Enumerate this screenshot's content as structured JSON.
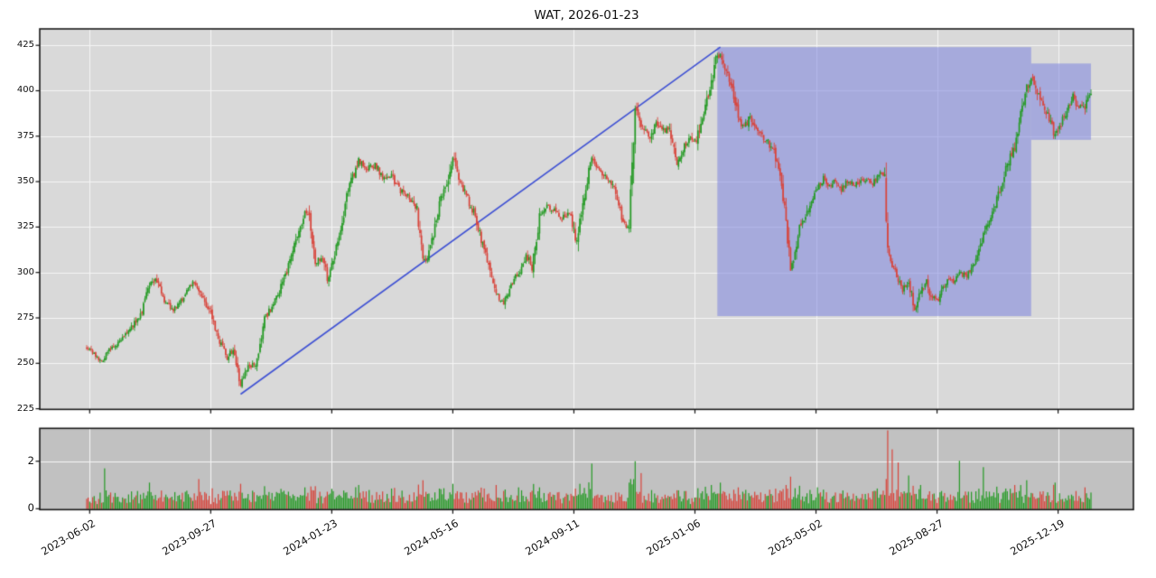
{
  "title": "WAT, 2026-01-23",
  "chart_data": {
    "type": "candlestick",
    "title": "WAT, 2026-01-23",
    "price_axis": {
      "tick_labels": [
        425,
        400,
        375,
        350,
        325,
        300,
        275,
        250,
        225
      ],
      "range": [
        224.5,
        434
      ]
    },
    "volume_axis": {
      "tick_labels": [
        2,
        0
      ],
      "range": [
        0,
        3.42
      ]
    },
    "x_axis": {
      "tick_labels": [
        "2023-06-02",
        "2023-09-27",
        "2024-01-23",
        "2024-05-16",
        "2024-09-11",
        "2025-01-06",
        "2025-05-02",
        "2025-08-27",
        "2025-12-19"
      ],
      "tick_day_indices": [
        2,
        83,
        164,
        245,
        326,
        407,
        488,
        569,
        650
      ],
      "total_days": 673,
      "last_date": "2026-01-23"
    },
    "series": {
      "close_keypoints": [
        [
          0,
          259
        ],
        [
          4,
          256
        ],
        [
          10,
          251
        ],
        [
          14,
          257
        ],
        [
          22,
          262
        ],
        [
          30,
          270
        ],
        [
          36,
          277
        ],
        [
          42,
          293
        ],
        [
          46,
          297
        ],
        [
          51,
          286
        ],
        [
          58,
          279
        ],
        [
          63,
          284
        ],
        [
          68,
          291
        ],
        [
          72,
          295
        ],
        [
          79,
          284
        ],
        [
          83,
          277
        ],
        [
          89,
          262
        ],
        [
          94,
          253
        ],
        [
          98,
          258
        ],
        [
          103,
          238
        ],
        [
          108,
          248
        ],
        [
          113,
          250
        ],
        [
          119,
          274
        ],
        [
          123,
          280
        ],
        [
          129,
          290
        ],
        [
          134,
          300
        ],
        [
          140,
          318
        ],
        [
          146,
          332
        ],
        [
          149,
          330
        ],
        [
          153,
          305
        ],
        [
          158,
          309
        ],
        [
          161,
          296
        ],
        [
          164,
          303
        ],
        [
          169,
          320
        ],
        [
          175,
          345
        ],
        [
          182,
          362
        ],
        [
          186,
          357
        ],
        [
          193,
          359
        ],
        [
          199,
          352
        ],
        [
          204,
          353
        ],
        [
          210,
          345
        ],
        [
          217,
          340
        ],
        [
          221,
          334
        ],
        [
          225,
          308
        ],
        [
          228,
          305
        ],
        [
          232,
          322
        ],
        [
          237,
          340
        ],
        [
          241,
          348
        ],
        [
          245,
          364
        ],
        [
          248,
          355
        ],
        [
          253,
          344
        ],
        [
          259,
          333
        ],
        [
          264,
          318
        ],
        [
          269,
          305
        ],
        [
          274,
          288
        ],
        [
          279,
          283
        ],
        [
          284,
          293
        ],
        [
          289,
          300
        ],
        [
          294,
          310
        ],
        [
          298,
          303
        ],
        [
          303,
          330
        ],
        [
          308,
          337
        ],
        [
          313,
          334
        ],
        [
          318,
          330
        ],
        [
          323,
          333
        ],
        [
          328,
          316
        ],
        [
          332,
          340
        ],
        [
          338,
          362
        ],
        [
          343,
          355
        ],
        [
          348,
          352
        ],
        [
          353,
          348
        ],
        [
          359,
          327
        ],
        [
          363,
          325
        ],
        [
          367,
          394
        ],
        [
          371,
          382
        ],
        [
          376,
          374
        ],
        [
          381,
          382
        ],
        [
          385,
          378
        ],
        [
          390,
          380
        ],
        [
          395,
          360
        ],
        [
          399,
          368
        ],
        [
          404,
          374
        ],
        [
          408,
          372
        ],
        [
          413,
          390
        ],
        [
          418,
          404
        ],
        [
          421,
          417
        ],
        [
          424,
          422
        ],
        [
          426,
          415
        ],
        [
          429,
          408
        ],
        [
          433,
          398
        ],
        [
          436,
          383
        ],
        [
          440,
          380
        ],
        [
          444,
          386
        ],
        [
          448,
          380
        ],
        [
          453,
          374
        ],
        [
          456,
          372
        ],
        [
          460,
          366
        ],
        [
          464,
          352
        ],
        [
          468,
          330
        ],
        [
          471,
          302
        ],
        [
          474,
          310
        ],
        [
          477,
          325
        ],
        [
          481,
          330
        ],
        [
          485,
          340
        ],
        [
          489,
          347
        ],
        [
          493,
          352
        ],
        [
          497,
          348
        ],
        [
          501,
          350
        ],
        [
          505,
          345
        ],
        [
          509,
          350
        ],
        [
          514,
          348
        ],
        [
          518,
          350
        ],
        [
          522,
          352
        ],
        [
          526,
          348
        ],
        [
          530,
          355
        ],
        [
          534,
          352
        ],
        [
          536,
          312
        ],
        [
          539,
          305
        ],
        [
          543,
          297
        ],
        [
          546,
          290
        ],
        [
          550,
          295
        ],
        [
          554,
          280
        ],
        [
          558,
          290
        ],
        [
          562,
          295
        ],
        [
          565,
          287
        ],
        [
          569,
          284
        ],
        [
          573,
          292
        ],
        [
          576,
          297
        ],
        [
          580,
          295
        ],
        [
          584,
          300
        ],
        [
          588,
          298
        ],
        [
          592,
          302
        ],
        [
          596,
          308
        ],
        [
          600,
          322
        ],
        [
          604,
          330
        ],
        [
          608,
          337
        ],
        [
          613,
          350
        ],
        [
          617,
          362
        ],
        [
          621,
          370
        ],
        [
          625,
          388
        ],
        [
          629,
          402
        ],
        [
          633,
          408
        ],
        [
          636,
          400
        ],
        [
          640,
          390
        ],
        [
          644,
          385
        ],
        [
          648,
          375
        ],
        [
          652,
          382
        ],
        [
          656,
          390
        ],
        [
          660,
          398
        ],
        [
          663,
          392
        ],
        [
          667,
          390
        ],
        [
          672,
          398
        ]
      ]
    },
    "volume": {
      "typical_range": [
        0.2,
        0.8
      ],
      "spikes": [
        [
          12,
          1.7
        ],
        [
          42,
          1.1
        ],
        [
          75,
          1.25
        ],
        [
          103,
          1.05
        ],
        [
          119,
          0.95
        ],
        [
          146,
          0.9
        ],
        [
          153,
          0.95
        ],
        [
          182,
          1.0
        ],
        [
          204,
          0.85
        ],
        [
          225,
          1.2
        ],
        [
          245,
          1.05
        ],
        [
          274,
          1.0
        ],
        [
          289,
          0.9
        ],
        [
          303,
          0.9
        ],
        [
          338,
          1.9
        ],
        [
          363,
          1.1
        ],
        [
          367,
          2.0
        ],
        [
          371,
          1.5
        ],
        [
          418,
          1.0
        ],
        [
          424,
          1.1
        ],
        [
          436,
          0.9
        ],
        [
          468,
          1.0
        ],
        [
          471,
          1.35
        ],
        [
          489,
          0.9
        ],
        [
          536,
          3.3
        ],
        [
          539,
          2.5
        ],
        [
          543,
          1.95
        ],
        [
          550,
          1.4
        ],
        [
          558,
          1.0
        ],
        [
          584,
          2.02
        ],
        [
          600,
          1.75
        ],
        [
          621,
          1.0
        ],
        [
          629,
          1.2
        ],
        [
          648,
          1.1
        ],
        [
          668,
          0.9
        ]
      ]
    },
    "overlays": {
      "trendline": {
        "from_day": 103,
        "from_price": 233,
        "to_day": 424,
        "to_price": 424,
        "color": "#3f51d4"
      },
      "boxes": [
        {
          "from_day": 422,
          "to_day": 632,
          "price_low": 276,
          "price_high": 424
        },
        {
          "from_day": 632,
          "to_day": 672,
          "price_low": 373,
          "price_high": 415
        }
      ]
    },
    "colors": {
      "up": "#269b26",
      "down": "#d8453c",
      "trendline": "#3f51d4",
      "box_fill": "rgba(123,132,222,0.55)",
      "price_panel_bg": "#d9d9d9",
      "volume_panel_bg": "#c1c1c1",
      "grid": "#f5f5f5",
      "spine": "#1a1a1a"
    },
    "legend": null,
    "grid": true
  }
}
